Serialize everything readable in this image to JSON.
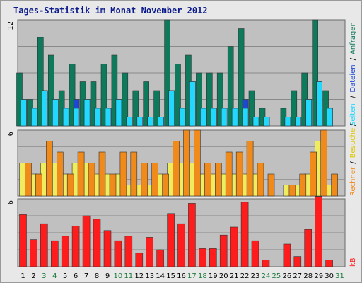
{
  "title": "Tages-Statistik im Monat November 2012",
  "chart_data": [
    {
      "type": "bar",
      "panel": "top",
      "ymax_label": "12",
      "ylim": [
        0,
        12
      ],
      "legend_text": [
        "Seiten",
        "Dateien",
        "Anfragen"
      ],
      "legend_separators": [
        "/",
        "/"
      ],
      "grid": true,
      "categories": [
        "1",
        "2",
        "3",
        "4",
        "5",
        "6",
        "7",
        "8",
        "9",
        "10",
        "11",
        "12",
        "13",
        "14",
        "15",
        "16",
        "17",
        "18",
        "19",
        "20",
        "21",
        "22",
        "23",
        "24",
        "25",
        "26",
        "27",
        "28",
        "29",
        "30",
        "31"
      ],
      "series": [
        {
          "name": "Anfragen",
          "color": "#0e7a5c",
          "values": [
            6,
            3,
            10,
            8,
            4,
            7,
            5,
            5,
            7,
            8,
            6,
            4,
            5,
            4,
            12,
            7,
            8,
            6,
            6,
            6,
            9,
            11,
            4,
            2,
            0,
            2,
            4,
            6,
            12,
            4,
            0
          ]
        },
        {
          "name": "Dateien",
          "color": "#1e48d4",
          "values": [
            3,
            2,
            4,
            3,
            2,
            3,
            3,
            2,
            2,
            3,
            1,
            1,
            1,
            1,
            4,
            2,
            5,
            2,
            2,
            2,
            2,
            3,
            1,
            1,
            0,
            1,
            1,
            3,
            5,
            2,
            0
          ]
        },
        {
          "name": "Seiten",
          "color": "#22d8ff",
          "values": [
            3,
            2,
            4,
            3,
            2,
            2,
            3,
            2,
            2,
            3,
            1,
            1,
            1,
            1,
            4,
            2,
            5,
            2,
            2,
            2,
            2,
            2,
            1,
            1,
            0,
            1,
            1,
            3,
            5,
            2,
            0
          ]
        }
      ]
    },
    {
      "type": "bar",
      "panel": "middle",
      "ymax_label": "6",
      "ylim": [
        0,
        6
      ],
      "legend_text": [
        "Rechner",
        "Besuche"
      ],
      "legend_separators": [
        "/",
        "/"
      ],
      "grid": true,
      "categories": [
        "1",
        "2",
        "3",
        "4",
        "5",
        "6",
        "7",
        "8",
        "9",
        "10",
        "11",
        "12",
        "13",
        "14",
        "15",
        "16",
        "17",
        "18",
        "19",
        "20",
        "21",
        "22",
        "23",
        "24",
        "25",
        "26",
        "27",
        "28",
        "29",
        "30",
        "31"
      ],
      "series": [
        {
          "name": "Besuche",
          "color": "#f0ec60",
          "values": [
            3,
            2,
            3,
            3,
            2,
            3,
            3,
            2,
            2,
            2,
            1,
            1,
            1,
            2,
            3,
            3,
            3,
            2,
            2,
            2,
            2,
            2,
            2,
            0,
            0,
            1,
            1,
            2,
            5,
            1,
            0
          ]
        },
        {
          "name": "Rechner",
          "color": "#f08a1a",
          "values": [
            3,
            2,
            5,
            4,
            2,
            4,
            3,
            4,
            2,
            4,
            4,
            3,
            3,
            2,
            5,
            6,
            6,
            3,
            3,
            4,
            4,
            5,
            3,
            2,
            0,
            1,
            2,
            4,
            6,
            2,
            0
          ]
        }
      ]
    },
    {
      "type": "bar",
      "panel": "bottom",
      "ymax_label": "6",
      "ylim": [
        0,
        6
      ],
      "legend_text": [
        "kB"
      ],
      "grid": true,
      "categories": [
        "1",
        "2",
        "3",
        "4",
        "5",
        "6",
        "7",
        "8",
        "9",
        "10",
        "11",
        "12",
        "13",
        "14",
        "15",
        "16",
        "17",
        "18",
        "19",
        "20",
        "21",
        "22",
        "23",
        "24",
        "25",
        "26",
        "27",
        "28",
        "29",
        "30",
        "31"
      ],
      "series": [
        {
          "name": "kB",
          "color": "#ff1c1c",
          "values": [
            4.6,
            2.4,
            3.8,
            2.3,
            2.7,
            3.6,
            4.5,
            4.2,
            3.2,
            2.3,
            2.7,
            1.2,
            2.6,
            1.5,
            4.7,
            3.8,
            5.6,
            1.6,
            1.6,
            2.8,
            3.5,
            5.7,
            2.3,
            0.6,
            0,
            2.0,
            0.9,
            3.3,
            6.2,
            0.6,
            0
          ]
        }
      ]
    }
  ],
  "x_labels": [
    "1",
    "2",
    "3",
    "4",
    "5",
    "6",
    "7",
    "8",
    "9",
    "10",
    "11",
    "12",
    "13",
    "14",
    "15",
    "16",
    "17",
    "18",
    "19",
    "20",
    "21",
    "22",
    "23",
    "24",
    "25",
    "26",
    "27",
    "28",
    "29",
    "30",
    "31"
  ],
  "weekend_days": [
    "3",
    "4",
    "10",
    "11",
    "17",
    "18",
    "24",
    "25",
    "31"
  ],
  "colors": {
    "background": "#e8e8e8",
    "plot": "#c0c0c0",
    "grid": "#8a8a8a",
    "title": "#0a1a8c",
    "weekday_label": "#000000",
    "weekend_label": "#1a7a3a"
  }
}
